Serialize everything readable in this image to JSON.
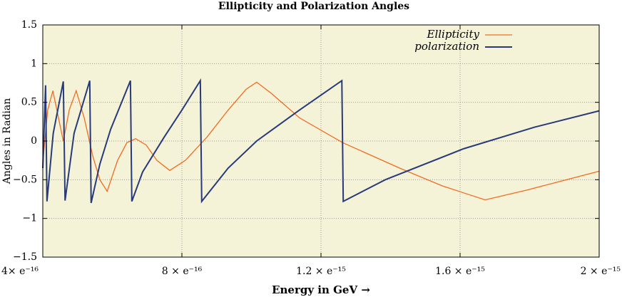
{
  "chart_data": {
    "type": "line",
    "title": "Ellipticity and Polarization Angles",
    "x_label": "Energy  in  GeV   →",
    "y_label": "Angles in Radian",
    "xlim": [
      4e-16,
      2e-15
    ],
    "ylim": [
      -1.5,
      1.5
    ],
    "xticks": [
      {
        "value": 4e-16,
        "label": "4× e⁻¹⁶"
      },
      {
        "value": 8e-16,
        "label": "8 × e⁻¹⁶"
      },
      {
        "value": 1.2e-15,
        "label": "1.2 × e⁻¹⁵"
      },
      {
        "value": 1.6e-15,
        "label": "1.6 × e⁻¹⁵"
      },
      {
        "value": 2e-15,
        "label": "2 × e⁻¹⁵"
      }
    ],
    "yticks": [
      1.5,
      1,
      0.5,
      0,
      {
        "value": -0.5,
        "label": "−0.5"
      },
      {
        "value": -1,
        "label": "−1"
      },
      {
        "value": -1.5,
        "label": "−1.5"
      }
    ],
    "grid": true,
    "legend": "top-right",
    "series": [
      {
        "name": "Ellipticity",
        "color": "#f26b21",
        "x": [
          4e-16,
          4.14e-16,
          4.29e-16,
          4.45e-16,
          4.59e-16,
          4.76e-16,
          4.96e-16,
          5.19e-16,
          5.44e-16,
          5.64e-16,
          5.85e-16,
          6.15e-16,
          6.42e-16,
          6.67e-16,
          6.97e-16,
          7.28e-16,
          7.65e-16,
          8.1e-16,
          8.72e-16,
          9.33e-16,
          9.85e-16,
          1.015e-15,
          1.056e-15,
          1.138e-15,
          1.262e-15,
          1.426e-15,
          1.549e-15,
          1.672e-15,
          1.795e-15,
          2e-15
        ],
        "values": [
          -0.28,
          0.4,
          0.65,
          0.3,
          0.0,
          0.4,
          0.65,
          0.3,
          -0.2,
          -0.5,
          -0.65,
          -0.25,
          -0.02,
          0.03,
          -0.05,
          -0.25,
          -0.38,
          -0.25,
          0.05,
          0.4,
          0.67,
          0.76,
          0.62,
          0.3,
          -0.02,
          -0.35,
          -0.58,
          -0.76,
          -0.63,
          -0.39
        ]
      },
      {
        "name": "polarization",
        "color": "#283a7a",
        "x": [
          4e-16,
          4.08e-16,
          4.12e-16,
          4.3e-16,
          4.59e-16,
          4.64e-16,
          4.9e-16,
          5.35e-16,
          5.39e-16,
          5.64e-16,
          5.95e-16,
          6.52e-16,
          6.56e-16,
          6.87e-16,
          7.49e-16,
          8e-16,
          8.53e-16,
          8.57e-16,
          9.33e-16,
          1.015e-15,
          1.138e-15,
          1.26e-15,
          1.264e-15,
          1.385e-15,
          1.61e-15,
          1.815e-15,
          2e-15
        ],
        "values": [
          -0.35,
          0.72,
          -0.78,
          0.1,
          0.77,
          -0.77,
          0.1,
          0.78,
          -0.8,
          -0.3,
          0.15,
          0.78,
          -0.78,
          -0.4,
          0.05,
          0.4,
          0.78,
          -0.78,
          -0.35,
          0.0,
          0.4,
          0.78,
          -0.78,
          -0.5,
          -0.1,
          0.18,
          0.39
        ]
      }
    ]
  }
}
